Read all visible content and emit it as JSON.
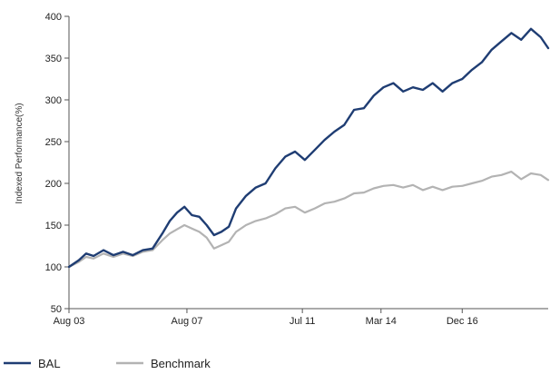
{
  "chart_data": {
    "type": "line",
    "ylabel": "Indexed Performance(%)",
    "xlabel": "",
    "ylim": [
      50,
      400
    ],
    "y_ticks": [
      50,
      100,
      150,
      200,
      250,
      300,
      350,
      400
    ],
    "x_range": [
      "2003-08-01",
      "2019-11-01"
    ],
    "x_ticks": [
      {
        "date": "2003-08-01",
        "label": "Aug 03"
      },
      {
        "date": "2007-08-01",
        "label": "Aug 07"
      },
      {
        "date": "2011-07-01",
        "label": "Jul 11"
      },
      {
        "date": "2014-03-01",
        "label": "Mar 14"
      },
      {
        "date": "2016-12-01",
        "label": "Dec 16"
      }
    ],
    "grid": false,
    "legend_position": "bottom-left",
    "series": [
      {
        "name": "BAL",
        "color": "#1f3d73",
        "points": [
          [
            "2003-08-01",
            100
          ],
          [
            "2003-12-01",
            108
          ],
          [
            "2004-03-01",
            116
          ],
          [
            "2004-06-01",
            113
          ],
          [
            "2004-10-01",
            120
          ],
          [
            "2005-02-01",
            114
          ],
          [
            "2005-06-01",
            118
          ],
          [
            "2005-10-01",
            114
          ],
          [
            "2006-02-01",
            120
          ],
          [
            "2006-06-01",
            122
          ],
          [
            "2006-10-01",
            140
          ],
          [
            "2007-01-01",
            155
          ],
          [
            "2007-04-01",
            165
          ],
          [
            "2007-07-01",
            172
          ],
          [
            "2007-10-01",
            162
          ],
          [
            "2008-01-01",
            160
          ],
          [
            "2008-04-01",
            150
          ],
          [
            "2008-07-01",
            138
          ],
          [
            "2008-10-01",
            142
          ],
          [
            "2009-01-01",
            148
          ],
          [
            "2009-04-01",
            170
          ],
          [
            "2009-08-01",
            185
          ],
          [
            "2009-12-01",
            195
          ],
          [
            "2010-04-01",
            200
          ],
          [
            "2010-08-01",
            218
          ],
          [
            "2010-12-01",
            232
          ],
          [
            "2011-04-01",
            238
          ],
          [
            "2011-08-01",
            228
          ],
          [
            "2011-12-01",
            240
          ],
          [
            "2012-04-01",
            252
          ],
          [
            "2012-08-01",
            262
          ],
          [
            "2012-12-01",
            270
          ],
          [
            "2013-04-01",
            288
          ],
          [
            "2013-08-01",
            290
          ],
          [
            "2013-12-01",
            305
          ],
          [
            "2014-04-01",
            315
          ],
          [
            "2014-08-01",
            320
          ],
          [
            "2014-12-01",
            310
          ],
          [
            "2015-04-01",
            315
          ],
          [
            "2015-08-01",
            312
          ],
          [
            "2015-12-01",
            320
          ],
          [
            "2016-04-01",
            310
          ],
          [
            "2016-08-01",
            320
          ],
          [
            "2016-12-01",
            325
          ],
          [
            "2017-04-01",
            336
          ],
          [
            "2017-08-01",
            345
          ],
          [
            "2017-12-01",
            360
          ],
          [
            "2018-04-01",
            370
          ],
          [
            "2018-08-01",
            380
          ],
          [
            "2018-12-01",
            372
          ],
          [
            "2019-04-01",
            385
          ],
          [
            "2019-08-01",
            375
          ],
          [
            "2019-11-01",
            362
          ]
        ]
      },
      {
        "name": "Benchmark",
        "color": "#b3b3b3",
        "points": [
          [
            "2003-08-01",
            100
          ],
          [
            "2003-12-01",
            106
          ],
          [
            "2004-03-01",
            112
          ],
          [
            "2004-06-01",
            110
          ],
          [
            "2004-10-01",
            116
          ],
          [
            "2005-02-01",
            112
          ],
          [
            "2005-06-01",
            116
          ],
          [
            "2005-10-01",
            113
          ],
          [
            "2006-02-01",
            118
          ],
          [
            "2006-06-01",
            120
          ],
          [
            "2006-10-01",
            132
          ],
          [
            "2007-01-01",
            140
          ],
          [
            "2007-04-01",
            145
          ],
          [
            "2007-07-01",
            150
          ],
          [
            "2007-10-01",
            146
          ],
          [
            "2008-01-01",
            142
          ],
          [
            "2008-04-01",
            135
          ],
          [
            "2008-07-01",
            122
          ],
          [
            "2008-10-01",
            126
          ],
          [
            "2009-01-01",
            130
          ],
          [
            "2009-04-01",
            142
          ],
          [
            "2009-08-01",
            150
          ],
          [
            "2009-12-01",
            155
          ],
          [
            "2010-04-01",
            158
          ],
          [
            "2010-08-01",
            163
          ],
          [
            "2010-12-01",
            170
          ],
          [
            "2011-04-01",
            172
          ],
          [
            "2011-08-01",
            165
          ],
          [
            "2011-12-01",
            170
          ],
          [
            "2012-04-01",
            176
          ],
          [
            "2012-08-01",
            178
          ],
          [
            "2012-12-01",
            182
          ],
          [
            "2013-04-01",
            188
          ],
          [
            "2013-08-01",
            189
          ],
          [
            "2013-12-01",
            194
          ],
          [
            "2014-04-01",
            197
          ],
          [
            "2014-08-01",
            198
          ],
          [
            "2014-12-01",
            195
          ],
          [
            "2015-04-01",
            198
          ],
          [
            "2015-08-01",
            192
          ],
          [
            "2015-12-01",
            196
          ],
          [
            "2016-04-01",
            192
          ],
          [
            "2016-08-01",
            196
          ],
          [
            "2016-12-01",
            197
          ],
          [
            "2017-04-01",
            200
          ],
          [
            "2017-08-01",
            203
          ],
          [
            "2017-12-01",
            208
          ],
          [
            "2018-04-01",
            210
          ],
          [
            "2018-08-01",
            214
          ],
          [
            "2018-12-01",
            205
          ],
          [
            "2019-04-01",
            212
          ],
          [
            "2019-08-01",
            210
          ],
          [
            "2019-11-01",
            204
          ]
        ]
      }
    ]
  }
}
